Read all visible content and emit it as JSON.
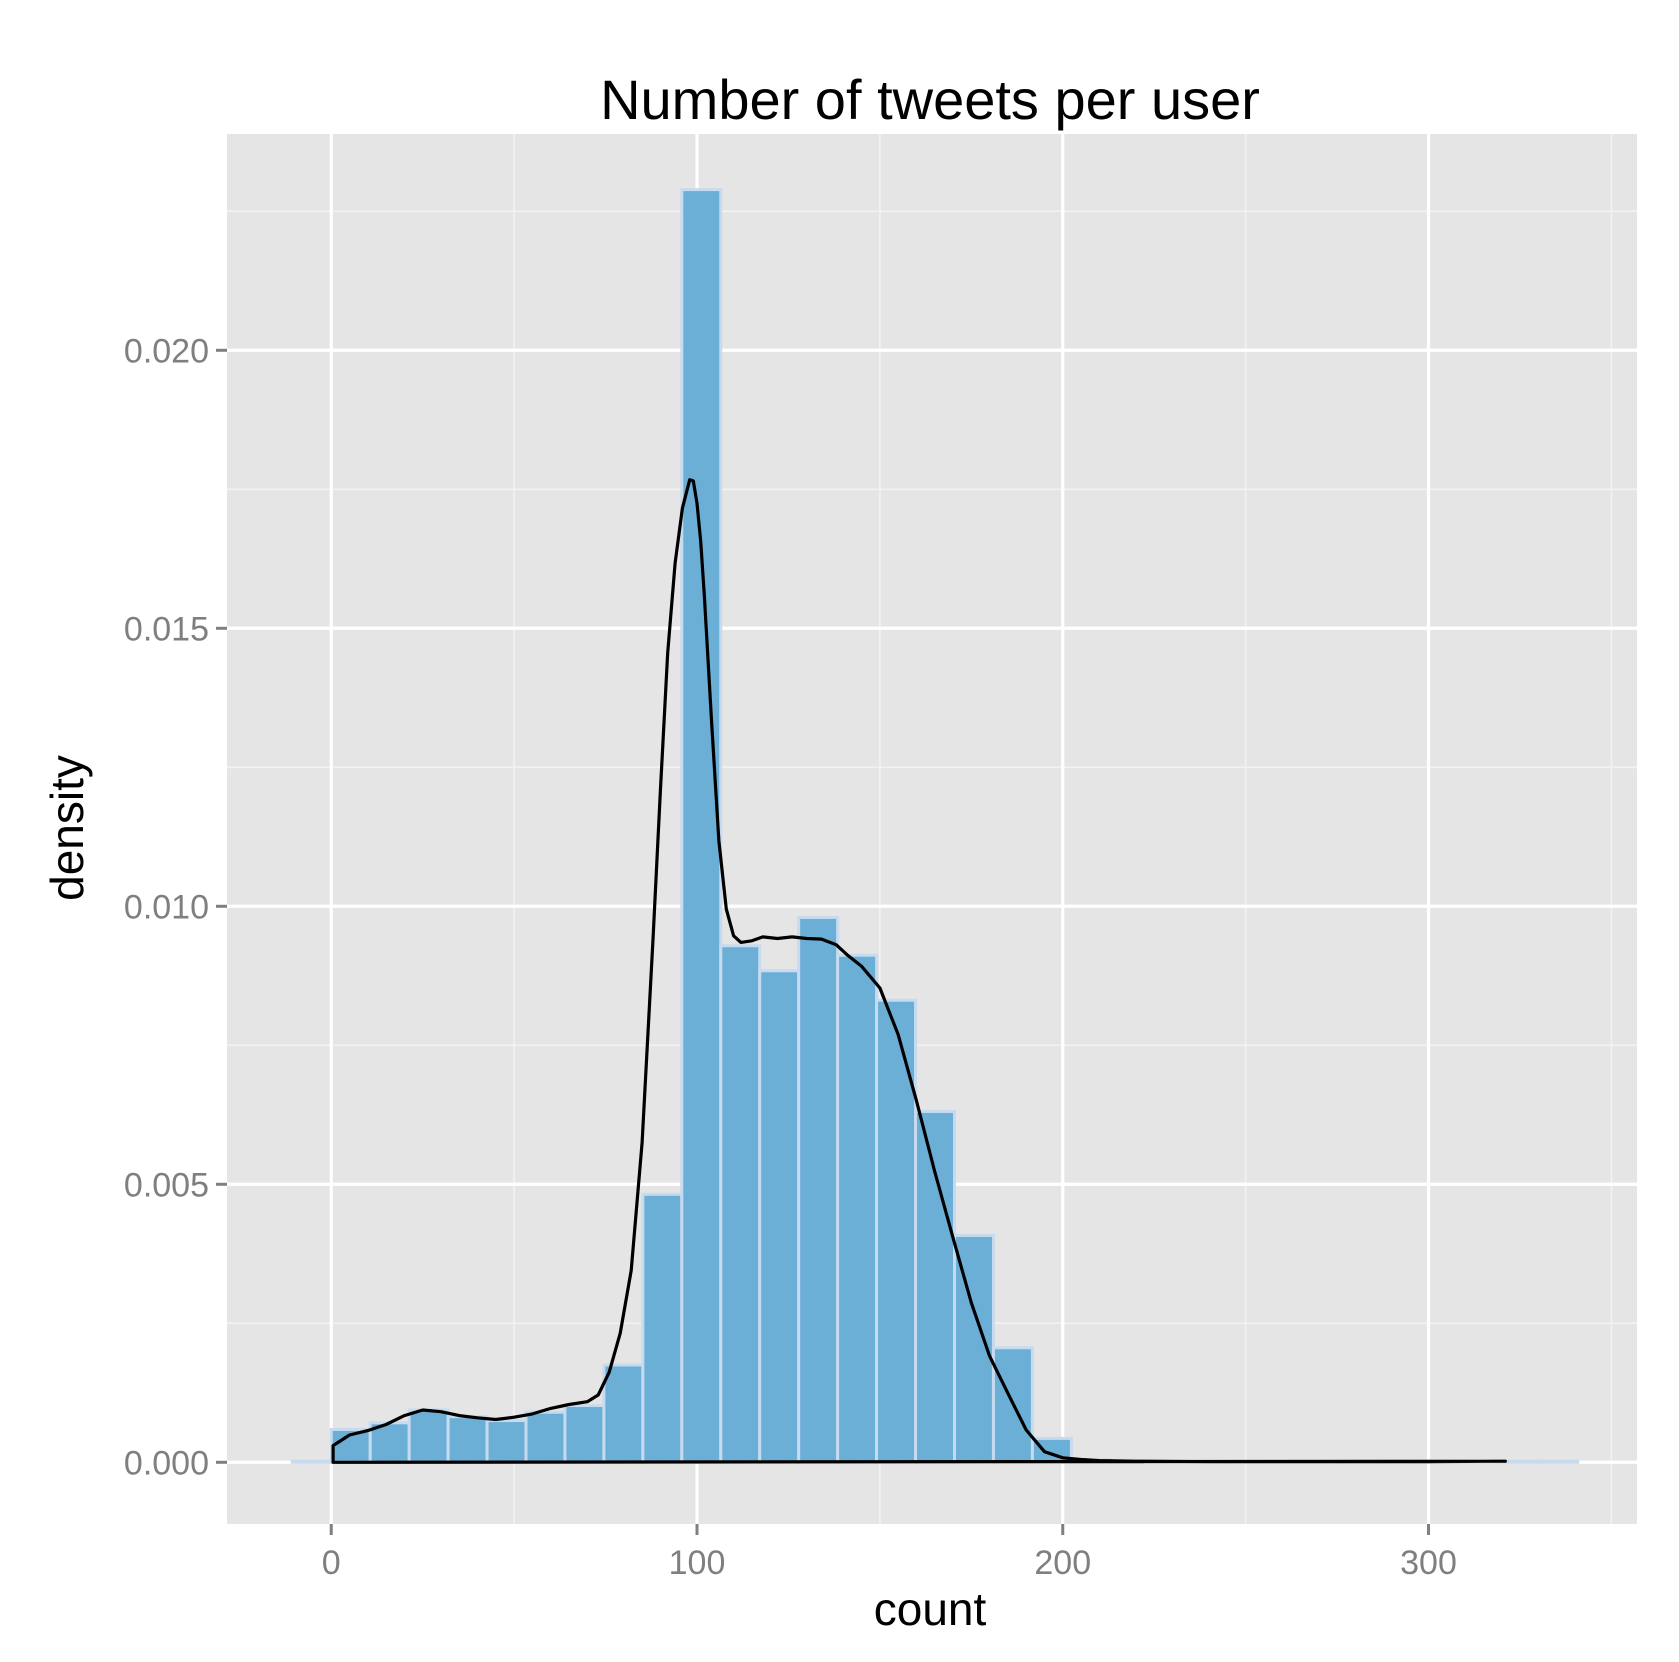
{
  "chart_data": {
    "type": "histogram",
    "title": "Number of tweets per user",
    "xlabel": "count",
    "ylabel": "density",
    "xlim": [
      -28.5,
      357
    ],
    "ylim": [
      -0.00111,
      0.02389
    ],
    "x_ticks": [
      0,
      100,
      200,
      300
    ],
    "x_tick_labels": [
      "0",
      "100",
      "200",
      "300"
    ],
    "y_ticks": [
      0,
      0.005,
      0.01,
      0.015,
      0.02
    ],
    "y_tick_labels": [
      "0.000",
      "0.005",
      "0.010",
      "0.015",
      "0.020"
    ],
    "grid": true,
    "legend": "none",
    "bin_width": 10.65,
    "bins": [
      {
        "x0": -10.65,
        "x1": 0.0,
        "density": 2e-05
      },
      {
        "x0": 0.0,
        "x1": 10.65,
        "density": 0.00059
      },
      {
        "x0": 10.65,
        "x1": 21.3,
        "density": 0.00071
      },
      {
        "x0": 21.3,
        "x1": 31.95,
        "density": 0.00094
      },
      {
        "x0": 31.95,
        "x1": 42.6,
        "density": 0.00082
      },
      {
        "x0": 42.6,
        "x1": 53.25,
        "density": 0.00075
      },
      {
        "x0": 53.25,
        "x1": 63.9,
        "density": 0.0009
      },
      {
        "x0": 63.9,
        "x1": 74.55,
        "density": 0.00102
      },
      {
        "x0": 74.55,
        "x1": 85.2,
        "density": 0.00175
      },
      {
        "x0": 85.2,
        "x1": 95.85,
        "density": 0.00482
      },
      {
        "x0": 95.85,
        "x1": 106.5,
        "density": 0.02289
      },
      {
        "x0": 106.5,
        "x1": 117.15,
        "density": 0.00929
      },
      {
        "x0": 117.15,
        "x1": 127.8,
        "density": 0.00884
      },
      {
        "x0": 127.8,
        "x1": 138.45,
        "density": 0.0098
      },
      {
        "x0": 138.45,
        "x1": 149.1,
        "density": 0.00912
      },
      {
        "x0": 149.1,
        "x1": 159.75,
        "density": 0.00831
      },
      {
        "x0": 159.75,
        "x1": 170.4,
        "density": 0.00631
      },
      {
        "x0": 170.4,
        "x1": 181.05,
        "density": 0.00408
      },
      {
        "x0": 181.05,
        "x1": 191.7,
        "density": 0.00206
      },
      {
        "x0": 191.7,
        "x1": 202.35,
        "density": 0.00043
      },
      {
        "x0": 202.35,
        "x1": 213.0,
        "density": 4e-05
      },
      {
        "x0": 213.0,
        "x1": 223.65,
        "density": 2e-05
      },
      {
        "x0": 223.65,
        "x1": 234.3,
        "density": 2e-05
      },
      {
        "x0": 234.3,
        "x1": 244.95,
        "density": 2e-05
      },
      {
        "x0": 244.95,
        "x1": 255.6,
        "density": 2e-05
      },
      {
        "x0": 255.6,
        "x1": 266.25,
        "density": 1e-05
      },
      {
        "x0": 266.25,
        "x1": 276.9,
        "density": 1e-05
      },
      {
        "x0": 276.9,
        "x1": 287.55,
        "density": 1e-05
      },
      {
        "x0": 287.55,
        "x1": 298.2,
        "density": 1e-05
      },
      {
        "x0": 298.2,
        "x1": 308.85,
        "density": 1e-05
      },
      {
        "x0": 308.85,
        "x1": 319.5,
        "density": 1e-05
      },
      {
        "x0": 319.5,
        "x1": 330.15,
        "density": 2e-05
      },
      {
        "x0": 330.15,
        "x1": 340.8,
        "density": 2e-05
      }
    ],
    "density_curve": {
      "x": [
        0.5,
        0.5,
        5,
        10,
        15,
        20,
        25,
        30,
        35,
        40,
        45,
        50,
        55,
        60,
        65,
        70,
        73,
        76,
        79,
        82,
        85,
        88,
        90,
        92,
        94,
        96,
        98,
        99,
        100,
        101,
        102,
        104,
        106,
        108,
        110,
        112,
        115,
        118,
        122,
        126,
        130,
        134,
        138,
        141,
        145,
        150,
        155,
        160,
        165,
        170,
        175,
        180,
        185,
        190,
        195,
        200,
        205,
        210,
        220,
        240,
        260,
        280,
        300,
        320,
        321
      ],
      "y": [
        0.0,
        0.0003,
        0.00049,
        0.00057,
        0.00068,
        0.00084,
        0.00094,
        0.00091,
        0.00084,
        0.0008,
        0.00077,
        0.00081,
        0.00087,
        0.00097,
        0.00104,
        0.00109,
        0.00121,
        0.00162,
        0.00232,
        0.00345,
        0.00575,
        0.00944,
        0.01208,
        0.01456,
        0.01617,
        0.01716,
        0.01767,
        0.01765,
        0.01725,
        0.01656,
        0.0156,
        0.01331,
        0.01117,
        0.00995,
        0.00947,
        0.00935,
        0.00938,
        0.00945,
        0.00942,
        0.00945,
        0.00942,
        0.00941,
        0.00931,
        0.00913,
        0.00892,
        0.00853,
        0.00769,
        0.0065,
        0.00523,
        0.00404,
        0.00287,
        0.00191,
        0.00124,
        0.00058,
        0.00019,
        8e-05,
        5e-05,
        3e-05,
        2e-05,
        1e-05,
        1e-05,
        1e-05,
        1e-05,
        2e-05,
        2e-05
      ]
    }
  }
}
